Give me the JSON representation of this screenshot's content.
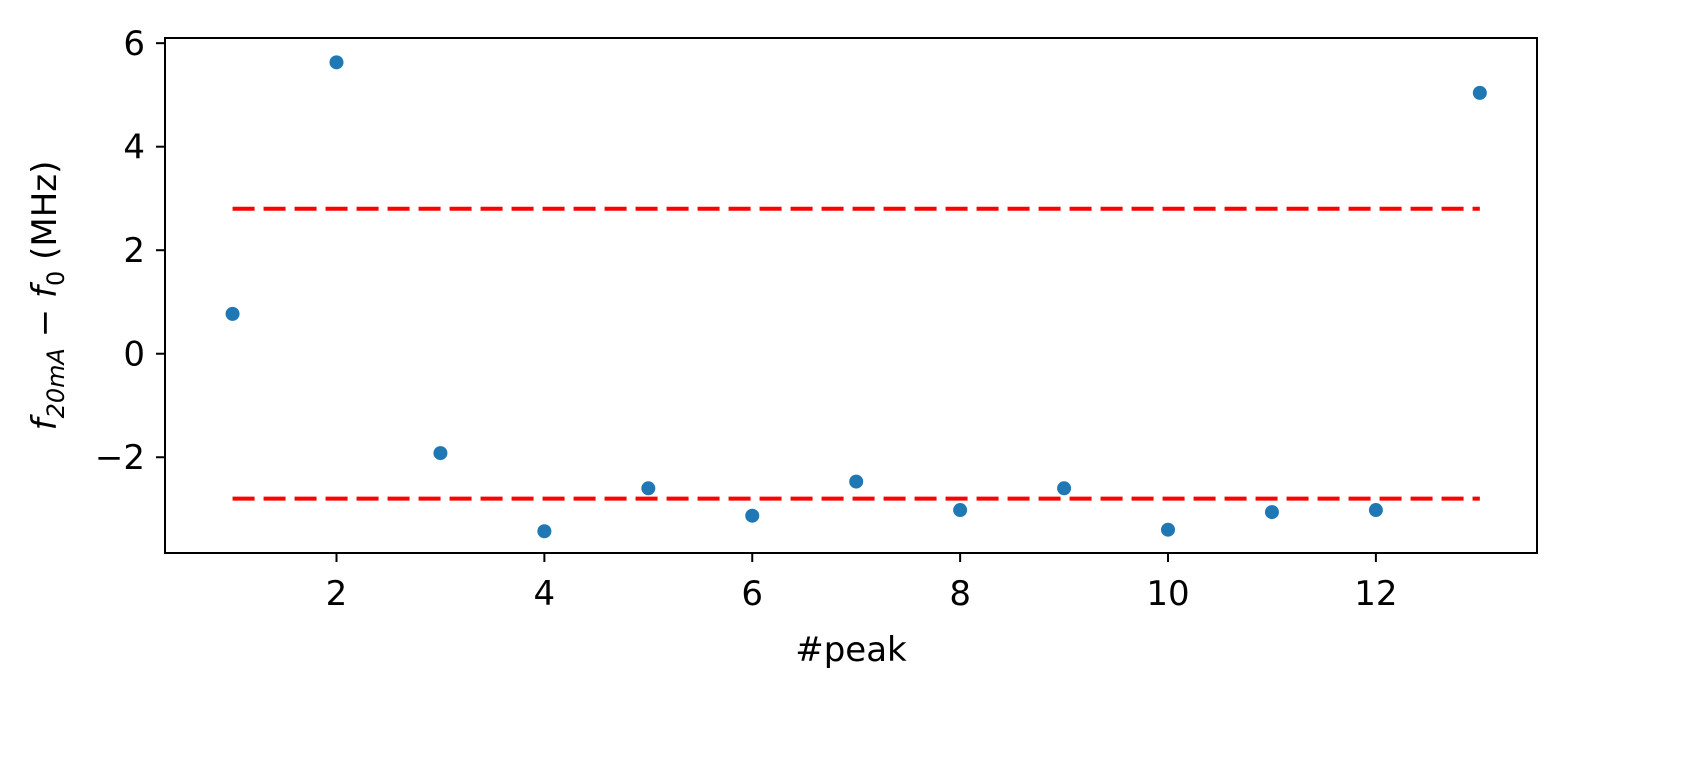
{
  "chart_data": {
    "type": "scatter",
    "title": "",
    "xlabel": "#peak",
    "ylabel": {
      "parts": [
        {
          "text": "f",
          "style": "italic"
        },
        {
          "text": "20mA",
          "style": "italic-sub"
        },
        {
          "text": " − ",
          "style": "normal"
        },
        {
          "text": "f",
          "style": "italic"
        },
        {
          "text": "0",
          "style": "sub"
        },
        {
          "text": " (MHz)",
          "style": "normal"
        }
      ]
    },
    "xlim": [
      0.35,
      13.55
    ],
    "ylim": [
      -3.85,
      6.1
    ],
    "xticks": [
      2,
      4,
      6,
      8,
      10,
      12
    ],
    "xtick_labels": [
      "2",
      "4",
      "6",
      "8",
      "10",
      "12"
    ],
    "yticks": [
      -2,
      0,
      2,
      4,
      6
    ],
    "ytick_labels": [
      "−2",
      "0",
      "2",
      "4",
      "6"
    ],
    "grid": false,
    "legend": "none",
    "series": [
      {
        "color": "#1f77b4",
        "marker": "circle",
        "x": [
          1,
          2,
          3,
          4,
          5,
          6,
          7,
          8,
          9,
          10,
          11,
          12,
          13
        ],
        "y": [
          0.77,
          5.63,
          -1.92,
          -3.43,
          -2.6,
          -3.13,
          -2.47,
          -3.02,
          -2.6,
          -3.4,
          -3.06,
          -3.02,
          5.04
        ]
      }
    ],
    "reference_lines": [
      {
        "y": 2.8,
        "x_start": 1,
        "x_end": 13,
        "color": "#ff0000",
        "style": "dashed"
      },
      {
        "y": -2.8,
        "x_start": 1,
        "x_end": 13,
        "color": "#ff0000",
        "style": "dashed"
      }
    ]
  }
}
